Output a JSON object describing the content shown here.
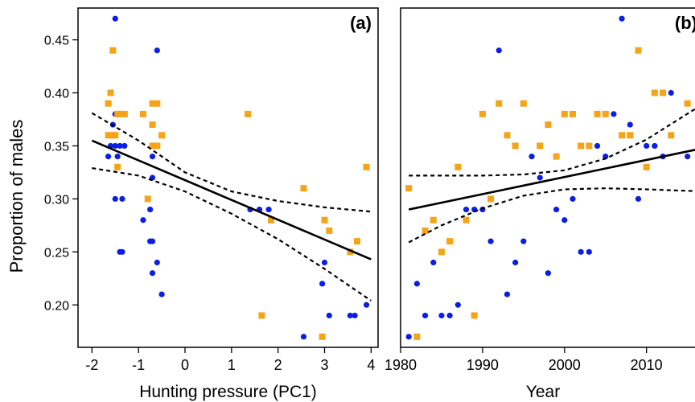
{
  "figure": {
    "ylabel": "Proportion of males",
    "colors": {
      "series_blue": "#0b1ee6",
      "series_orange": "#f5a418",
      "axis": "#000000"
    }
  },
  "chart_data": [
    {
      "type": "scatter",
      "panel_label": "(a)",
      "xlabel": "Hunting pressure (PC1)",
      "ylabel": "Proportion of males",
      "xlim": [
        -2.3,
        4.15
      ],
      "ylim": [
        0.16,
        0.48
      ],
      "xticks": [
        -2,
        -1,
        0,
        1,
        2,
        3,
        4
      ],
      "yticks": [
        0.2,
        0.25,
        0.3,
        0.35,
        0.4,
        0.45
      ],
      "ytick_labels": [
        "0.20",
        "0.25",
        "0.30",
        "0.35",
        "0.40",
        "0.45"
      ],
      "grid": false,
      "series": [
        {
          "color": "#0b1ee6",
          "marker": "circle",
          "points": [
            [
              -1.5,
              0.47
            ],
            [
              -1.6,
              0.4
            ],
            [
              -1.55,
              0.37
            ],
            [
              -1.5,
              0.38
            ],
            [
              -1.6,
              0.35
            ],
            [
              -1.5,
              0.35
            ],
            [
              -1.4,
              0.35
            ],
            [
              -1.3,
              0.35
            ],
            [
              -1.65,
              0.34
            ],
            [
              -1.45,
              0.34
            ],
            [
              -1.5,
              0.3
            ],
            [
              -1.35,
              0.3
            ],
            [
              -1.4,
              0.25
            ],
            [
              -1.35,
              0.25
            ],
            [
              -0.6,
              0.44
            ],
            [
              -0.7,
              0.34
            ],
            [
              -0.7,
              0.32
            ],
            [
              -0.9,
              0.28
            ],
            [
              -0.75,
              0.29
            ],
            [
              -0.75,
              0.26
            ],
            [
              -0.7,
              0.26
            ],
            [
              -0.6,
              0.24
            ],
            [
              -0.7,
              0.23
            ],
            [
              -0.5,
              0.21
            ],
            [
              1.4,
              0.29
            ],
            [
              1.6,
              0.29
            ],
            [
              1.8,
              0.29
            ],
            [
              2.55,
              0.17
            ],
            [
              2.95,
              0.22
            ],
            [
              3.0,
              0.24
            ],
            [
              3.1,
              0.19
            ],
            [
              3.55,
              0.19
            ],
            [
              3.65,
              0.19
            ],
            [
              3.9,
              0.2
            ]
          ]
        },
        {
          "color": "#f5a418",
          "marker": "square",
          "points": [
            [
              -1.55,
              0.44
            ],
            [
              -1.6,
              0.4
            ],
            [
              -1.65,
              0.39
            ],
            [
              -1.45,
              0.38
            ],
            [
              -1.4,
              0.38
            ],
            [
              -1.3,
              0.38
            ],
            [
              -1.65,
              0.36
            ],
            [
              -1.55,
              0.36
            ],
            [
              -1.5,
              0.36
            ],
            [
              -1.45,
              0.33
            ],
            [
              -0.9,
              0.38
            ],
            [
              -0.7,
              0.39
            ],
            [
              -0.6,
              0.39
            ],
            [
              -0.7,
              0.37
            ],
            [
              -0.5,
              0.36
            ],
            [
              -0.7,
              0.35
            ],
            [
              -0.6,
              0.35
            ],
            [
              -0.8,
              0.3
            ],
            [
              1.35,
              0.38
            ],
            [
              1.65,
              0.19
            ],
            [
              1.85,
              0.28
            ],
            [
              2.55,
              0.31
            ],
            [
              2.95,
              0.17
            ],
            [
              3.0,
              0.28
            ],
            [
              3.1,
              0.27
            ],
            [
              3.55,
              0.25
            ],
            [
              3.7,
              0.26
            ],
            [
              3.9,
              0.33
            ]
          ]
        }
      ],
      "fit_line": {
        "x": [
          -2.0,
          4.0
        ],
        "y": [
          0.355,
          0.243
        ]
      },
      "ci_lower": {
        "x": [
          -2.0,
          -1.0,
          0.0,
          1.0,
          2.0,
          3.0,
          4.0
        ],
        "y": [
          0.329,
          0.322,
          0.307,
          0.286,
          0.262,
          0.234,
          0.204
        ]
      },
      "ci_upper": {
        "x": [
          -2.0,
          -1.0,
          0.0,
          1.0,
          2.0,
          3.0,
          4.0
        ],
        "y": [
          0.381,
          0.355,
          0.325,
          0.307,
          0.298,
          0.292,
          0.288
        ]
      }
    },
    {
      "type": "scatter",
      "panel_label": "(b)",
      "xlabel": "Year",
      "ylabel": "",
      "xlim": [
        1980,
        2017
      ],
      "ylim": [
        0.16,
        0.48
      ],
      "xticks": [
        1980,
        1990,
        2000,
        2010
      ],
      "grid": false,
      "series": [
        {
          "color": "#0b1ee6",
          "marker": "circle",
          "points": [
            [
              1981,
              0.17
            ],
            [
              1982,
              0.22
            ],
            [
              1983,
              0.19
            ],
            [
              1984,
              0.24
            ],
            [
              1985,
              0.19
            ],
            [
              1986,
              0.19
            ],
            [
              1987,
              0.2
            ],
            [
              1988,
              0.29
            ],
            [
              1989,
              0.29
            ],
            [
              1990,
              0.29
            ],
            [
              1991,
              0.26
            ],
            [
              1992,
              0.44
            ],
            [
              1993,
              0.21
            ],
            [
              1994,
              0.24
            ],
            [
              1995,
              0.26
            ],
            [
              1996,
              0.34
            ],
            [
              1997,
              0.32
            ],
            [
              1998,
              0.23
            ],
            [
              1999,
              0.29
            ],
            [
              2000,
              0.28
            ],
            [
              2001,
              0.3
            ],
            [
              2002,
              0.25
            ],
            [
              2003,
              0.25
            ],
            [
              2004,
              0.35
            ],
            [
              2005,
              0.34
            ],
            [
              2006,
              0.38
            ],
            [
              2007,
              0.47
            ],
            [
              2008,
              0.37
            ],
            [
              2009,
              0.3
            ],
            [
              2010,
              0.35
            ],
            [
              2011,
              0.35
            ],
            [
              2012,
              0.34
            ],
            [
              2013,
              0.4
            ],
            [
              2015,
              0.34
            ]
          ]
        },
        {
          "color": "#f5a418",
          "marker": "square",
          "points": [
            [
              1981,
              0.31
            ],
            [
              1982,
              0.17
            ],
            [
              1983,
              0.27
            ],
            [
              1984,
              0.28
            ],
            [
              1985,
              0.25
            ],
            [
              1986,
              0.26
            ],
            [
              1987,
              0.33
            ],
            [
              1988,
              0.28
            ],
            [
              1989,
              0.19
            ],
            [
              1990,
              0.38
            ],
            [
              1991,
              0.3
            ],
            [
              1992,
              0.39
            ],
            [
              1993,
              0.36
            ],
            [
              1994,
              0.35
            ],
            [
              1995,
              0.39
            ],
            [
              1997,
              0.35
            ],
            [
              1998,
              0.37
            ],
            [
              1999,
              0.34
            ],
            [
              2000,
              0.38
            ],
            [
              2001,
              0.38
            ],
            [
              2002,
              0.35
            ],
            [
              2003,
              0.35
            ],
            [
              2004,
              0.38
            ],
            [
              2005,
              0.38
            ],
            [
              2007,
              0.36
            ],
            [
              2008,
              0.36
            ],
            [
              2009,
              0.44
            ],
            [
              2010,
              0.33
            ],
            [
              2011,
              0.4
            ],
            [
              2012,
              0.4
            ],
            [
              2013,
              0.36
            ],
            [
              2015,
              0.39
            ]
          ]
        }
      ],
      "fit_line": {
        "x": [
          1981,
          2017
        ],
        "y": [
          0.29,
          0.348
        ]
      },
      "ci_lower": {
        "x": [
          1981,
          1985,
          1990,
          1995,
          2000,
          2005,
          2010,
          2017
        ],
        "y": [
          0.259,
          0.275,
          0.291,
          0.303,
          0.309,
          0.31,
          0.309,
          0.307
        ]
      },
      "ci_upper": {
        "x": [
          1981,
          1985,
          1990,
          1995,
          2000,
          2005,
          2010,
          2017
        ],
        "y": [
          0.322,
          0.322,
          0.322,
          0.323,
          0.327,
          0.338,
          0.356,
          0.39
        ]
      }
    }
  ]
}
